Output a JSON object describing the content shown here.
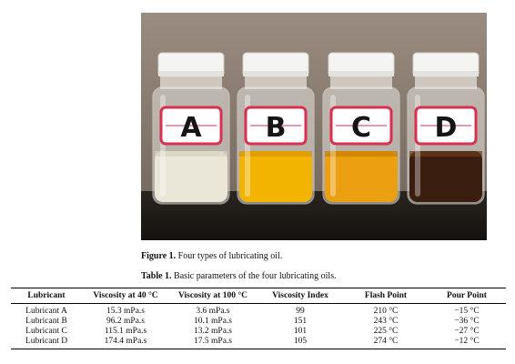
{
  "figure": {
    "label": "Figure 1.",
    "caption": "Four types of lubricating oil.",
    "bottles": [
      {
        "letter": "A",
        "liquid_color": "#eae6d8",
        "liquid_edge": "#d6d1c0"
      },
      {
        "letter": "B",
        "liquid_color": "#f2b400",
        "liquid_edge": "#d89400"
      },
      {
        "letter": "C",
        "liquid_color": "#eaa010",
        "liquid_edge": "#c97e00"
      },
      {
        "letter": "D",
        "liquid_color": "#3a1e10",
        "liquid_edge": "#6a3a18"
      }
    ]
  },
  "table": {
    "label": "Table 1.",
    "caption": "Basic parameters of the four lubricating oils.",
    "headers": [
      "Lubricant",
      "Viscosity at 40 °C",
      "Viscosity at 100 °C",
      "Viscosity Index",
      "Flash Point",
      "Pour Point"
    ],
    "rows": [
      [
        "Lubricant A",
        "15.3 mPa.s",
        "3.6 mPa.s",
        "99",
        "210 °C",
        "−15 °C"
      ],
      [
        "Lubricant B",
        "96.2 mPa.s",
        "10.1 mPa.s",
        "151",
        "243 °C",
        "−36 °C"
      ],
      [
        "Lubricant C",
        "115.1 mPa.s",
        "13.2 mPa.s",
        "101",
        "225 °C",
        "−27 °C"
      ],
      [
        "Lubricant D",
        "174.4 mPa.s",
        "17.5 mPa.s",
        "105",
        "274 °C",
        "−12 °C"
      ]
    ]
  }
}
